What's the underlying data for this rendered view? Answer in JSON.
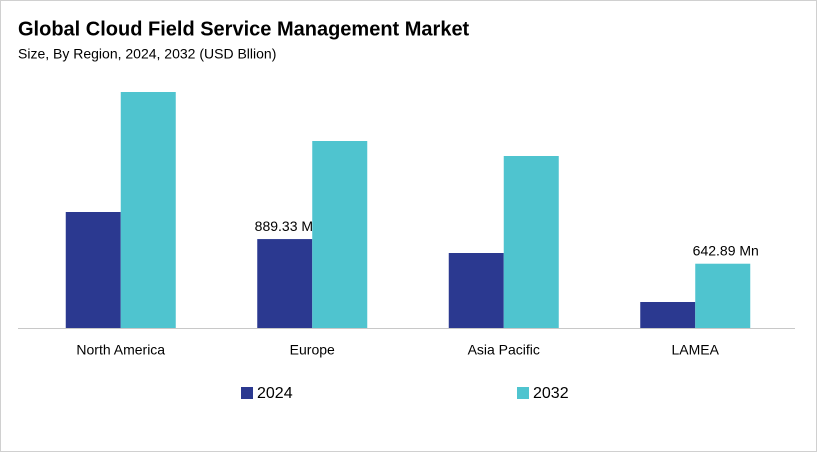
{
  "chart_data": {
    "type": "bar",
    "title": "Global Cloud Field Service Management Market",
    "subtitle": "Size, By Region, 2024, 2032 (USD Bllion)",
    "categories": [
      "North America",
      "Europe",
      "Asia Pacific",
      "LAMEA"
    ],
    "series": [
      {
        "name": "2024",
        "color": "#2b3990",
        "values": [
          1160,
          889.33,
          750,
          260
        ],
        "value_labels": [
          null,
          "889.33 Mn",
          null,
          null
        ]
      },
      {
        "name": "2032",
        "color": "#4fc4cf",
        "values": [
          2360,
          1870,
          1720,
          642.89
        ],
        "value_labels": [
          null,
          null,
          null,
          "642.89 Mn"
        ]
      }
    ],
    "legend": "bottom"
  }
}
